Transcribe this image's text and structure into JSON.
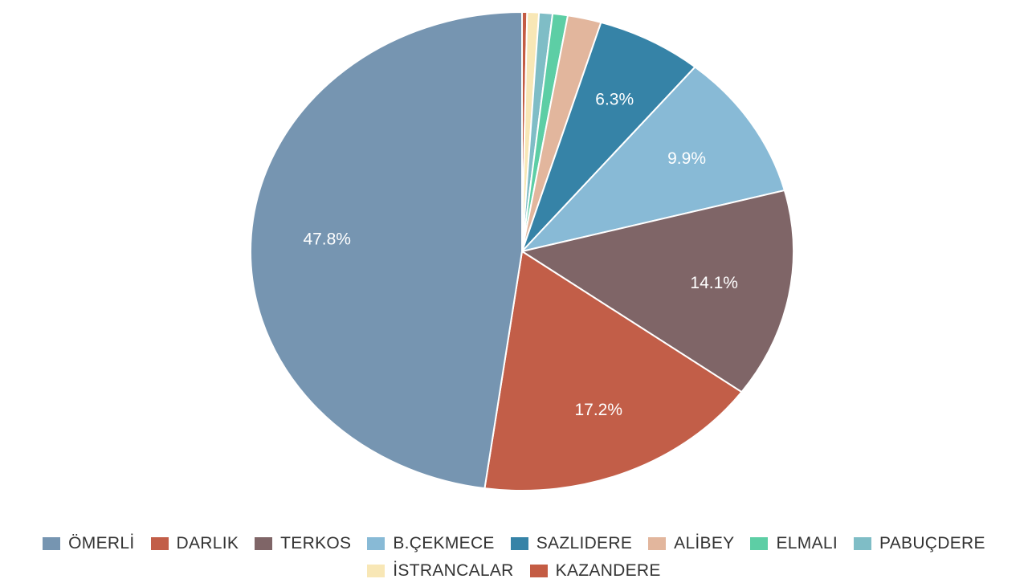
{
  "chart_data": {
    "type": "pie",
    "start_angle_deg": 0,
    "direction": "clockwise",
    "legend_position": "bottom",
    "slices": [
      {
        "name": "KAZANDERE",
        "value": 0.3,
        "label": "",
        "color": "#c45c44"
      },
      {
        "name": "İSTRANCALAR",
        "value": 0.7,
        "label": "",
        "color": "#f8e7b6"
      },
      {
        "name": "PABUÇDERE",
        "value": 0.8,
        "label": "",
        "color": "#7fbdc6"
      },
      {
        "name": "ELMALI",
        "value": 0.9,
        "label": "",
        "color": "#5dcea5"
      },
      {
        "name": "ALİBEY",
        "value": 2.0,
        "label": "",
        "color": "#e2b69d"
      },
      {
        "name": "SAZLIDERE",
        "value": 6.3,
        "label": "6.3%",
        "color": "#3683a7"
      },
      {
        "name": "B.ÇEKMECE",
        "value": 9.9,
        "label": "9.9%",
        "color": "#88bad6"
      },
      {
        "name": "TERKOS",
        "value": 14.1,
        "label": "14.1%",
        "color": "#7f6567"
      },
      {
        "name": "DARLIK",
        "value": 17.2,
        "label": "17.2%",
        "color": "#c25e48"
      },
      {
        "name": "ÖMERLİ",
        "value": 47.8,
        "label": "47.8%",
        "color": "#7695b1"
      }
    ],
    "legend_order": [
      "ÖMERLİ",
      "DARLIK",
      "TERKOS",
      "B.ÇEKMECE",
      "SAZLIDERE",
      "ALİBEY",
      "ELMALI",
      "PABUÇDERE",
      "İSTRANCALAR",
      "KAZANDERE"
    ]
  }
}
